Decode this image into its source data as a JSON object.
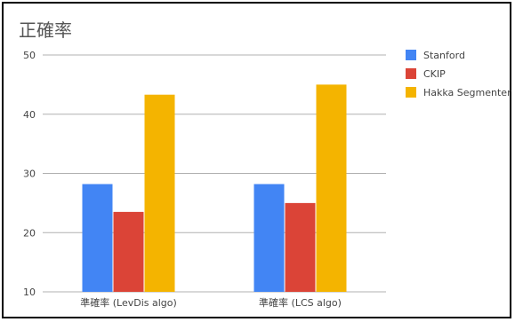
{
  "colors": {
    "background": "#ffffff",
    "frame": "#000000",
    "grid": "#b0b0b0",
    "text": "#444444",
    "title": "#555555",
    "series": [
      "#4285f4",
      "#db4437",
      "#f4b400"
    ]
  },
  "chart_data": {
    "type": "bar",
    "title": "正確率",
    "categories": [
      "準確率 (LevDis algo)",
      "準確率 (LCS algo)"
    ],
    "series": [
      {
        "name": "Stanford",
        "values": [
          28.2,
          28.2
        ]
      },
      {
        "name": "CKIP",
        "values": [
          23.5,
          25.0
        ]
      },
      {
        "name": "Hakka Segmenter",
        "values": [
          43.3,
          45.0
        ]
      }
    ],
    "ylim": [
      10,
      50
    ],
    "yticks": [
      10,
      20,
      30,
      40,
      50
    ],
    "ytick_labels": [
      "10",
      "20",
      "30",
      "40",
      "50"
    ],
    "xlabel": "",
    "ylabel": "",
    "grid": true,
    "legend": "right"
  }
}
